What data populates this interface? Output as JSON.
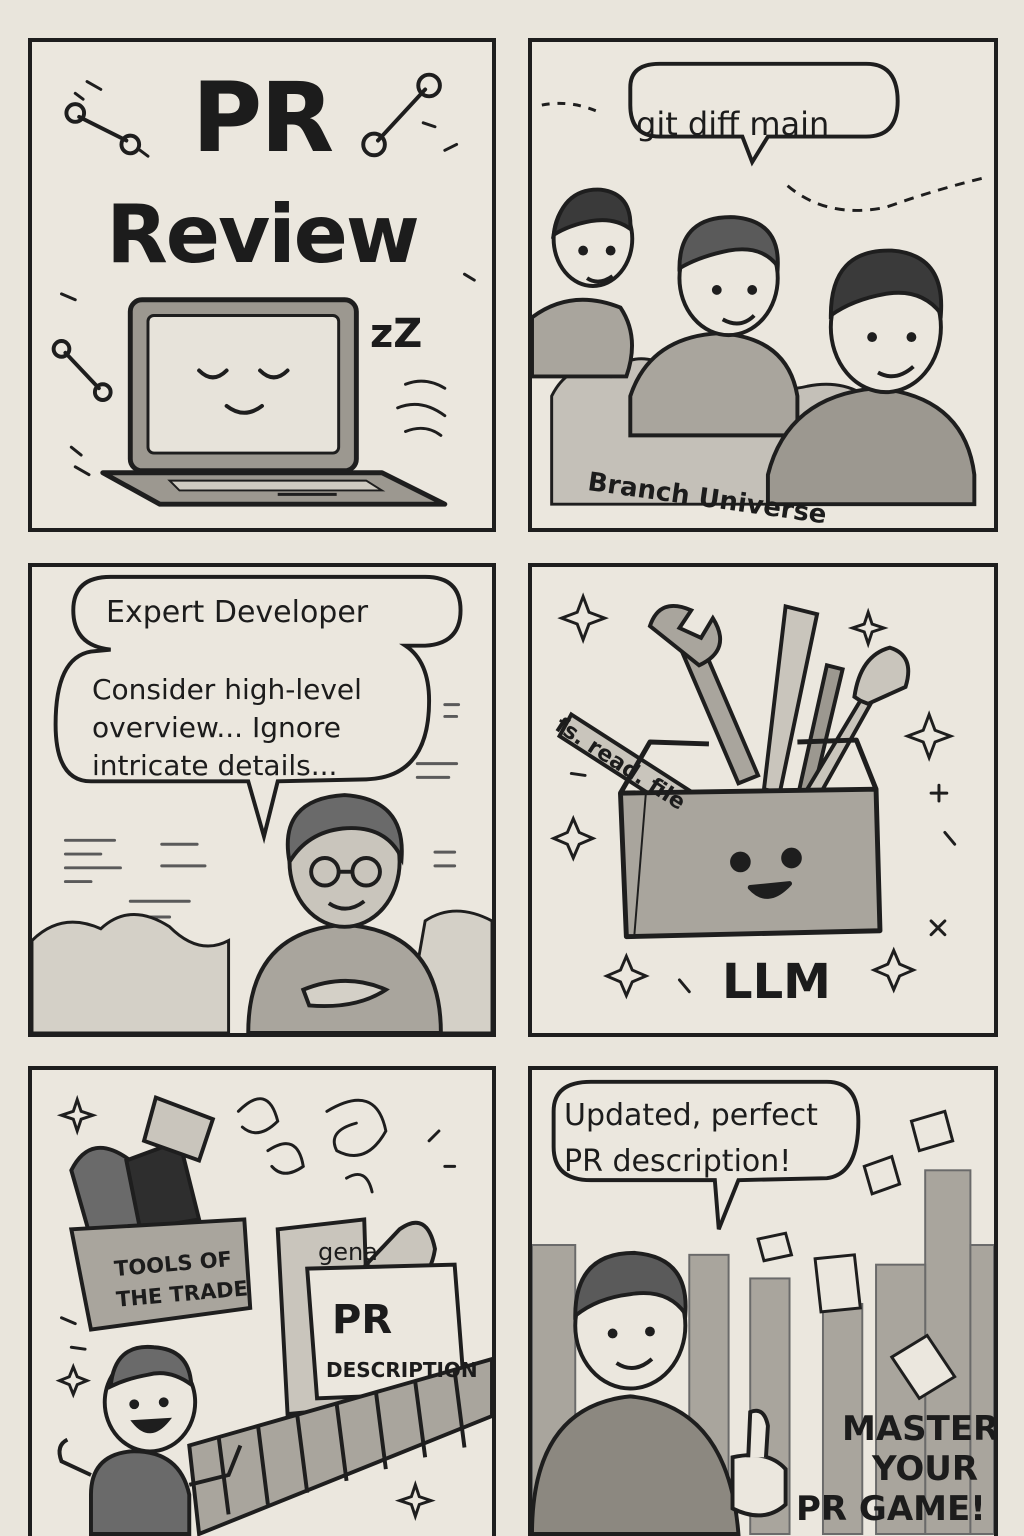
{
  "panels": {
    "title": {
      "line1": "PR",
      "line2": "Review",
      "snore": "zZ"
    },
    "branch": {
      "speech": "git diff main",
      "caption": "Branch Universe"
    },
    "expert": {
      "heading": "Expert Developer",
      "lines": [
        "Consider high-level",
        "overview... Ignore",
        "intricate details..."
      ]
    },
    "llm": {
      "tool_label": "fs. read. file",
      "caption": "LLM"
    },
    "tools": {
      "box_label_1": "TOOLS OF",
      "box_label_2": "THE TRADE",
      "machine_label": "gena",
      "card_line1": "PR",
      "card_line2": "DESCRIPTION"
    },
    "finale": {
      "speech_line1": "Updated, perfect",
      "speech_line2": "PR description!",
      "slogan": [
        "MASTER",
        "YOUR",
        "PR GAME!"
      ]
    }
  }
}
